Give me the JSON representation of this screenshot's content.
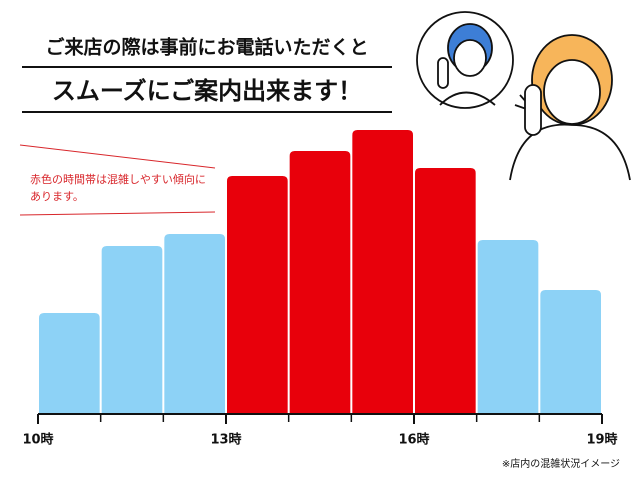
{
  "chart_data": {
    "type": "histogram",
    "title_lines": [
      "ご来店の際は事前にお電話いただくと",
      "スムーズにご案内出来ます！"
    ],
    "annotation_lines": [
      "赤色の時間帯は混雑しやすい傾向に",
      "あります。"
    ],
    "footnote": "※店内の混雑状況イメージ",
    "bins": [
      10,
      11,
      12,
      13,
      14,
      15,
      16,
      17,
      18,
      19
    ],
    "values": [
      101,
      168,
      180,
      238,
      263,
      284,
      246,
      174,
      124
    ],
    "colors": [
      "#8dd2f6",
      "#8dd2f6",
      "#8dd2f6",
      "#e8000b",
      "#e8000b",
      "#e8000b",
      "#e8000b",
      "#8dd2f6",
      "#8dd2f6"
    ],
    "xlim": [
      10,
      19
    ],
    "ylim": [
      0,
      300
    ],
    "xticks": [
      {
        "value": 10,
        "label": "10時"
      },
      {
        "value": 13,
        "label": "13時"
      },
      {
        "value": 16,
        "label": "16時"
      },
      {
        "value": 19,
        "label": "19時"
      }
    ]
  }
}
